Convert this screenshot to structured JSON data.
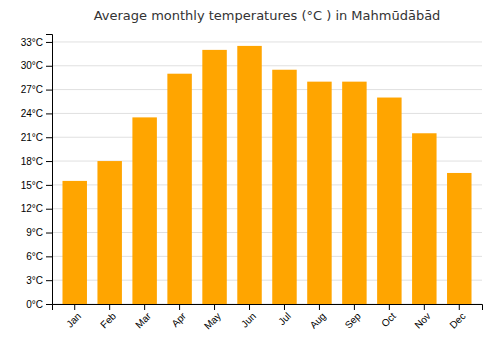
{
  "chart_data": {
    "type": "bar",
    "title": "Average monthly temperatures (°C ) in Mahmūdābād",
    "categories": [
      "Jan",
      "Feb",
      "Mar",
      "Apr",
      "May",
      "Jun",
      "Jul",
      "Aug",
      "Sep",
      "Oct",
      "Nov",
      "Dec"
    ],
    "values": [
      15.5,
      18.0,
      23.5,
      29.0,
      32.0,
      32.5,
      29.5,
      28.0,
      28.0,
      26.0,
      21.5,
      16.5
    ],
    "color": "#FFA500",
    "ylim": [
      0,
      34
    ],
    "yticks": [
      {
        "value": 0,
        "label": "0°C"
      },
      {
        "value": 3,
        "label": "3°C"
      },
      {
        "value": 6,
        "label": "6°C"
      },
      {
        "value": 9,
        "label": "9°C"
      },
      {
        "value": 12,
        "label": "12°C"
      },
      {
        "value": 15,
        "label": "15°C"
      },
      {
        "value": 18,
        "label": "18°C"
      },
      {
        "value": 21,
        "label": "21°C"
      },
      {
        "value": 24,
        "label": "24°C"
      },
      {
        "value": 27,
        "label": "27°C"
      },
      {
        "value": 30,
        "label": "30°C"
      },
      {
        "value": 33,
        "label": "33°C"
      }
    ],
    "grid": true
  }
}
